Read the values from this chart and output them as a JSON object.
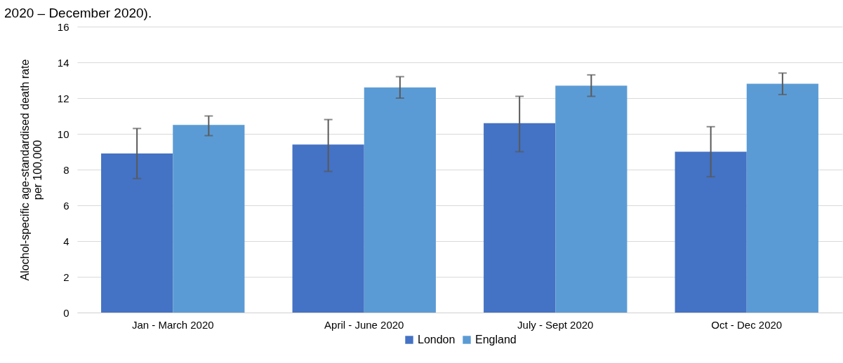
{
  "chart_data": {
    "type": "bar",
    "title": "2020 – December 2020).",
    "ylabel": "Alochol-specific age-standardised death rate\nper 100,000",
    "categories": [
      "Jan - March 2020",
      "April - June 2020",
      "July - Sept 2020",
      "Oct - Dec 2020"
    ],
    "series": [
      {
        "name": "London",
        "color": "#4472c4",
        "values": [
          8.9,
          9.4,
          10.6,
          9.0
        ],
        "errors": [
          [
            7.5,
            10.3
          ],
          [
            7.9,
            10.8
          ],
          [
            9.0,
            12.1
          ],
          [
            7.6,
            10.4
          ]
        ]
      },
      {
        "name": "England",
        "color": "#5b9bd5",
        "values": [
          10.5,
          12.6,
          12.7,
          12.8
        ],
        "errors": [
          [
            9.9,
            11.0
          ],
          [
            12.0,
            13.2
          ],
          [
            12.1,
            13.3
          ],
          [
            12.2,
            13.4
          ]
        ]
      }
    ],
    "ylim": [
      0,
      16
    ],
    "yticks": [
      0,
      2,
      4,
      6,
      8,
      10,
      12,
      14,
      16
    ],
    "grid": "y",
    "legend": "bottom"
  }
}
